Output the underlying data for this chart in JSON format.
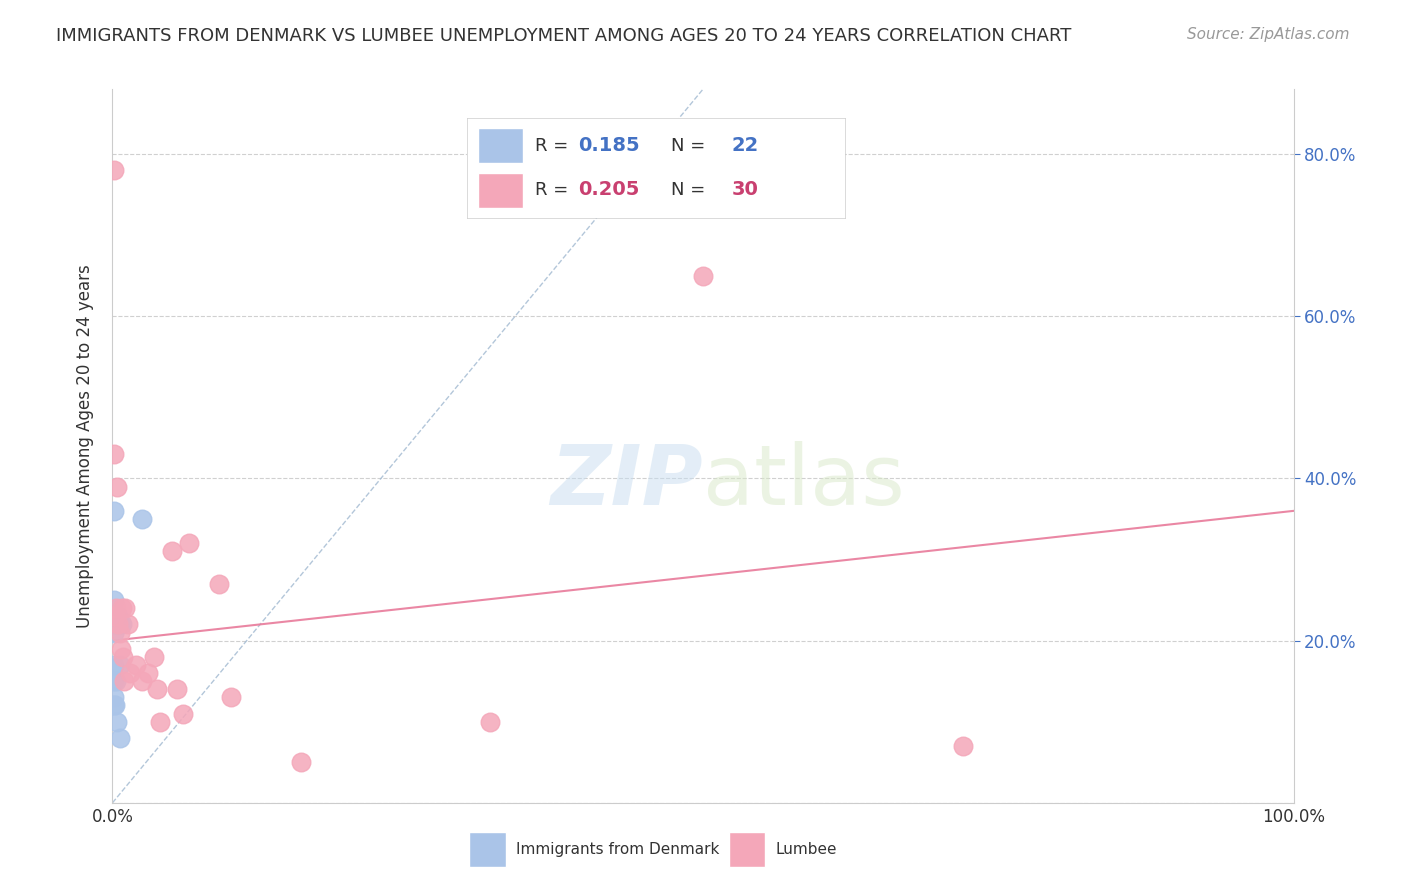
{
  "title": "IMMIGRANTS FROM DENMARK VS LUMBEE UNEMPLOYMENT AMONG AGES 20 TO 24 YEARS CORRELATION CHART",
  "source": "Source: ZipAtlas.com",
  "ylabel": "Unemployment Among Ages 20 to 24 years",
  "xlim": [
    0,
    1
  ],
  "ylim": [
    0,
    0.88
  ],
  "yticks": [
    0,
    0.2,
    0.4,
    0.6,
    0.8
  ],
  "blue_color": "#aac4e8",
  "pink_color": "#f4a7b9",
  "blue_scatter": {
    "x": [
      0.001,
      0.001,
      0.001,
      0.001,
      0.001,
      0.001,
      0.001,
      0.001,
      0.001,
      0.002,
      0.002,
      0.002,
      0.003,
      0.003,
      0.004,
      0.004,
      0.005,
      0.006,
      0.006,
      0.006,
      0.008,
      0.025
    ],
    "y": [
      0.36,
      0.25,
      0.23,
      0.22,
      0.21,
      0.17,
      0.15,
      0.13,
      0.12,
      0.23,
      0.22,
      0.12,
      0.22,
      0.15,
      0.22,
      0.1,
      0.23,
      0.22,
      0.17,
      0.08,
      0.22,
      0.35
    ]
  },
  "pink_scatter": {
    "x": [
      0.001,
      0.001,
      0.002,
      0.003,
      0.004,
      0.005,
      0.006,
      0.007,
      0.008,
      0.009,
      0.01,
      0.011,
      0.013,
      0.015,
      0.02,
      0.025,
      0.03,
      0.035,
      0.038,
      0.04,
      0.05,
      0.055,
      0.06,
      0.065,
      0.09,
      0.1,
      0.16,
      0.32,
      0.5,
      0.72
    ],
    "y": [
      0.78,
      0.43,
      0.23,
      0.24,
      0.39,
      0.22,
      0.21,
      0.19,
      0.24,
      0.18,
      0.15,
      0.24,
      0.22,
      0.16,
      0.17,
      0.15,
      0.16,
      0.18,
      0.14,
      0.1,
      0.31,
      0.14,
      0.11,
      0.32,
      0.27,
      0.13,
      0.05,
      0.1,
      0.65,
      0.07
    ]
  },
  "blue_line": {
    "x0": 0.0,
    "y0": 0.0,
    "x1": 0.5,
    "y1": 0.88
  },
  "pink_line": {
    "x0": 0.0,
    "y0": 0.2,
    "x1": 1.0,
    "y1": 0.36
  },
  "background_color": "#ffffff",
  "grid_color": "#d0d0d0",
  "title_color": "#333333",
  "right_axis_color": "#4472c4"
}
